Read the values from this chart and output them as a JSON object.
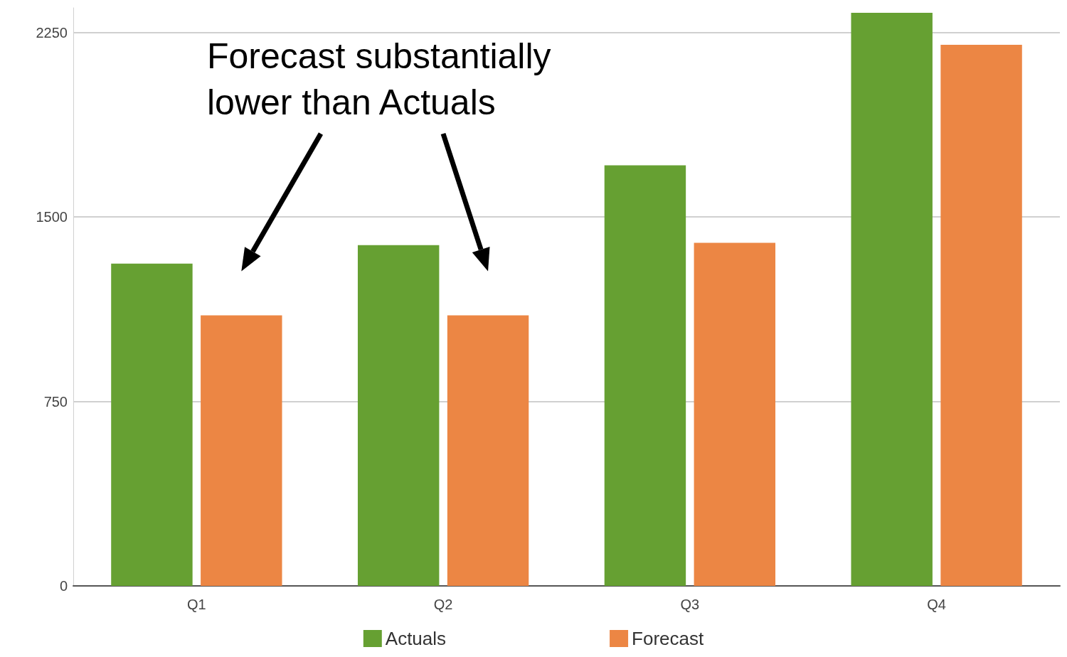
{
  "chart_data": {
    "type": "bar",
    "categories": [
      "Q1",
      "Q2",
      "Q3",
      "Q4"
    ],
    "series": [
      {
        "name": "Actuals",
        "color": "#66a032",
        "values": [
          1310,
          1385,
          1710,
          2330
        ]
      },
      {
        "name": "Forecast",
        "color": "#ec8644",
        "values": [
          1100,
          1100,
          1395,
          2200
        ]
      }
    ],
    "ylim": [
      0,
      2350
    ],
    "yticks": [
      0,
      750,
      1500,
      2250
    ],
    "grid": "y",
    "legend": "bottom",
    "annotations": [
      "Forecast substantially lower than Actuals"
    ]
  }
}
